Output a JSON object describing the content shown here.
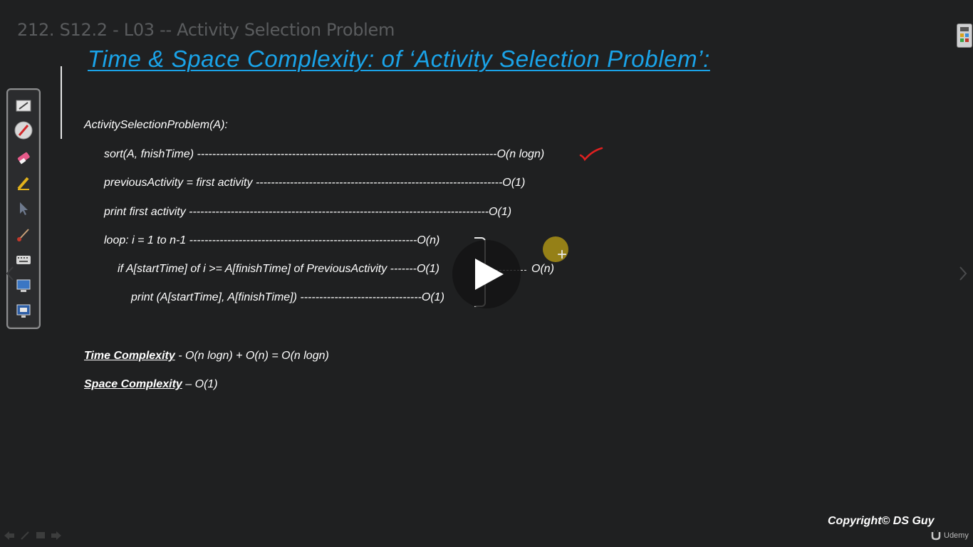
{
  "video": {
    "title": "212. S12.2 - L03 -- Activity Selection Problem"
  },
  "slide": {
    "heading": "Time & Space Complexity: of ‘Activity Selection Problem’:",
    "code_lines": [
      "ActivitySelectionProblem(A):",
      "sort(A, fnishTime) -------------------------------------------------------------------------------O(n logn)",
      "previousActivity = first activity -----------------------------------------------------------------O(1)",
      "print first activity -------------------------------------------------------------------------------O(1)",
      "loop: i = 1 to n-1 ------------------------------------------------------------O(n)",
      "if A[startTime] of i >= A[finishTime] of PreviousActivity -------O(1)",
      "print (A[startTime], A[finishTime]) --------------------------------O(1)"
    ],
    "bracket_result": "O(n)",
    "time_complexity_label": "Time Complexity",
    "time_complexity_value": " - O(n logn) + O(n) = O(n logn)",
    "space_complexity_label": "Space Complexity",
    "space_complexity_value": " – O(1)",
    "copyright": "Copyright© DS Guy"
  },
  "branding": {
    "udemy_label": "Udemy"
  },
  "toolbar": {
    "tools": [
      "whiteboard-icon",
      "pen-icon",
      "eraser-icon",
      "highlighter-icon",
      "pointer-icon",
      "brush-icon",
      "keyboard-icon",
      "screen-capture-icon",
      "display-icon"
    ]
  },
  "colors": {
    "heading": "#1aa3e8",
    "checkmark": "#e02020",
    "laser": "#bea014"
  }
}
